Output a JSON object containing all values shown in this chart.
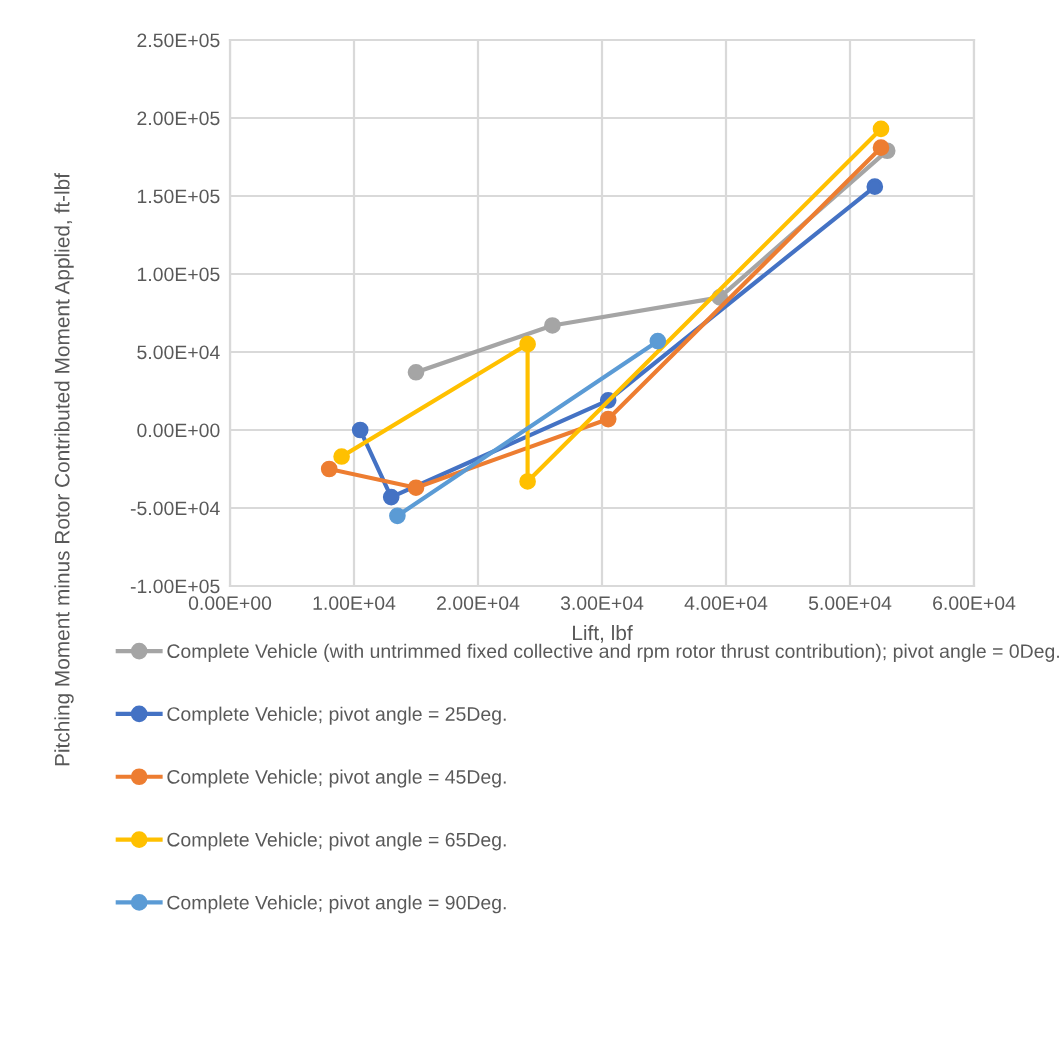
{
  "chart_data": {
    "type": "line",
    "xlabel": "Lift, lbf",
    "ylabel": "Pitching Moment minus Rotor Contributed Moment Applied, ft-lbf",
    "xlim": [
      0,
      60000
    ],
    "ylim": [
      -100000,
      250000
    ],
    "xticks": [
      {
        "value": 0,
        "label": "0.00E+00"
      },
      {
        "value": 10000,
        "label": "1.00E+04"
      },
      {
        "value": 20000,
        "label": "2.00E+04"
      },
      {
        "value": 30000,
        "label": "3.00E+04"
      },
      {
        "value": 40000,
        "label": "4.00E+04"
      },
      {
        "value": 50000,
        "label": "5.00E+04"
      },
      {
        "value": 60000,
        "label": "6.00E+04"
      }
    ],
    "yticks": [
      {
        "value": -100000,
        "label": "-1.00E+05"
      },
      {
        "value": -50000,
        "label": "-5.00E+04"
      },
      {
        "value": 0,
        "label": "0.00E+00"
      },
      {
        "value": 50000,
        "label": "5.00E+04"
      },
      {
        "value": 100000,
        "label": "1.00E+05"
      },
      {
        "value": 150000,
        "label": "1.50E+05"
      },
      {
        "value": 200000,
        "label": "2.00E+05"
      },
      {
        "value": 250000,
        "label": "2.50E+05"
      }
    ],
    "grid": true,
    "legend": "bottom",
    "marker": "circle",
    "line_style": "solid",
    "series": [
      {
        "name": "Complete Vehicle (with untrimmed fixed collective and rpm rotor thrust contribution); pivot angle = 0Deg.",
        "color": "#a5a5a5",
        "x": [
          15000,
          26000,
          39500,
          53000
        ],
        "values": [
          37000,
          67000,
          85000,
          179000
        ]
      },
      {
        "name": "Complete Vehicle; pivot angle = 25Deg.",
        "color": "#4472c4",
        "x": [
          10500,
          13000,
          30500,
          52000
        ],
        "values": [
          0,
          -43000,
          19000,
          156000
        ]
      },
      {
        "name": "Complete Vehicle; pivot angle = 45Deg.",
        "color": "#ed7d31",
        "x": [
          8000,
          15000,
          30500,
          52500
        ],
        "values": [
          -25000,
          -37000,
          7000,
          181000
        ]
      },
      {
        "name": "Complete Vehicle; pivot angle = 65Deg.",
        "color": "#ffc000",
        "x": [
          9000,
          24000,
          24000,
          52500
        ],
        "values": [
          -17000,
          55000,
          -33000,
          193000
        ]
      },
      {
        "name": "Complete Vehicle; pivot angle = 90Deg.",
        "color": "#5b9bd5",
        "x": [
          13500,
          34500
        ],
        "values": [
          -55000,
          57000
        ]
      }
    ]
  }
}
